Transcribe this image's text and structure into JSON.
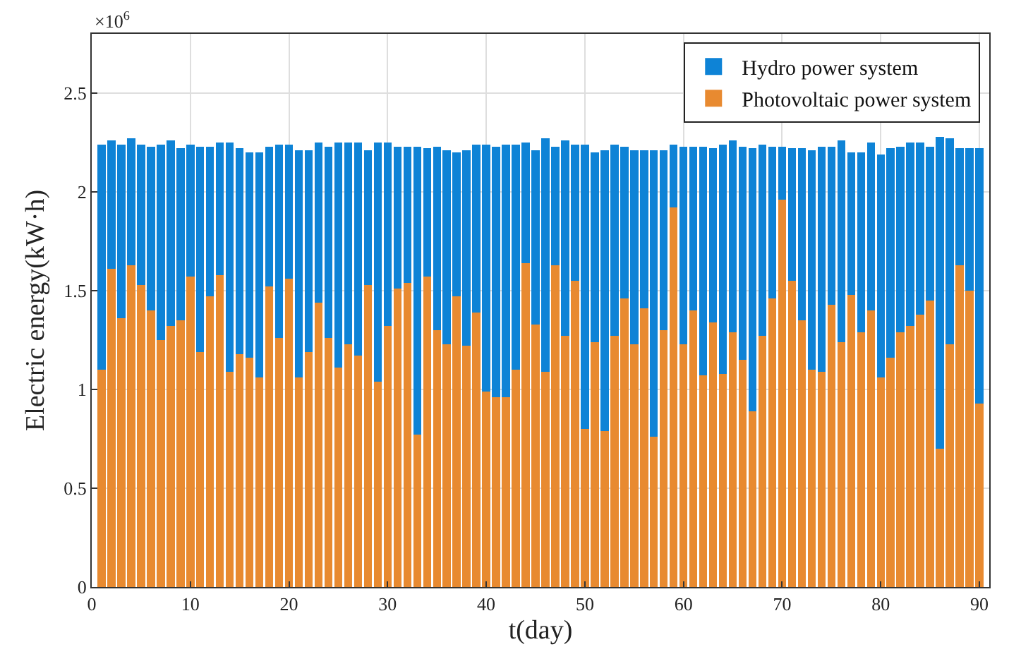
{
  "chart_data": {
    "type": "bar",
    "stacked": true,
    "xlabel": "t(day)",
    "ylabel": "Electric energy(kW·h)",
    "annotations": [
      "×10$^{6}$"
    ],
    "x": [
      1,
      2,
      3,
      4,
      5,
      6,
      7,
      8,
      9,
      10,
      11,
      12,
      13,
      14,
      15,
      16,
      17,
      18,
      19,
      20,
      21,
      22,
      23,
      24,
      25,
      26,
      27,
      28,
      29,
      30,
      31,
      32,
      33,
      34,
      35,
      36,
      37,
      38,
      39,
      40,
      41,
      42,
      43,
      44,
      45,
      46,
      47,
      48,
      49,
      50,
      51,
      52,
      53,
      54,
      55,
      56,
      57,
      58,
      59,
      60,
      61,
      62,
      63,
      64,
      65,
      66,
      67,
      68,
      69,
      70,
      71,
      72,
      73,
      74,
      75,
      76,
      77,
      78,
      79,
      80,
      81,
      82,
      83,
      84,
      85,
      86,
      87,
      88,
      89,
      90
    ],
    "series": [
      {
        "name": "Photovoltaic power system",
        "color": "#e88a30",
        "values": [
          1.1,
          1.61,
          1.36,
          1.63,
          1.53,
          1.4,
          1.25,
          1.32,
          1.35,
          1.57,
          1.19,
          1.47,
          1.58,
          1.09,
          1.18,
          1.16,
          1.06,
          1.52,
          1.26,
          1.56,
          1.06,
          1.19,
          1.44,
          1.26,
          1.11,
          1.23,
          1.17,
          1.53,
          1.04,
          1.32,
          1.51,
          1.54,
          0.77,
          1.57,
          1.3,
          1.23,
          1.47,
          1.22,
          1.39,
          0.99,
          0.96,
          0.96,
          1.1,
          1.64,
          1.33,
          1.09,
          1.63,
          1.27,
          1.55,
          0.8,
          1.24,
          0.79,
          1.27,
          1.46,
          1.23,
          1.41,
          0.76,
          1.3,
          1.92,
          1.23,
          1.4,
          1.07,
          1.34,
          1.08,
          1.29,
          1.15,
          0.89,
          1.27,
          1.46,
          1.96,
          1.55,
          1.35,
          1.1,
          1.09,
          1.43,
          1.24,
          1.48,
          1.29,
          1.4,
          1.06,
          1.16,
          1.29,
          1.32,
          1.38,
          1.45,
          0.7,
          1.23,
          1.63,
          1.5,
          0.93
        ]
      },
      {
        "name": "Hydro power system",
        "color": "#0e83d6",
        "values": [
          1.14,
          0.65,
          0.88,
          0.64,
          0.71,
          0.83,
          0.99,
          0.94,
          0.87,
          0.67,
          1.04,
          0.76,
          0.67,
          1.16,
          1.04,
          1.04,
          1.14,
          0.71,
          0.98,
          0.68,
          1.15,
          1.02,
          0.81,
          0.97,
          1.14,
          1.02,
          1.08,
          0.68,
          1.21,
          0.93,
          0.72,
          0.69,
          1.46,
          0.65,
          0.93,
          0.98,
          0.73,
          0.99,
          0.85,
          1.25,
          1.27,
          1.28,
          1.14,
          0.61,
          0.88,
          1.18,
          0.6,
          0.99,
          0.69,
          1.44,
          0.96,
          1.42,
          0.97,
          0.77,
          0.98,
          0.8,
          1.45,
          0.91,
          0.32,
          1.0,
          0.83,
          1.16,
          0.88,
          1.16,
          0.97,
          1.08,
          1.33,
          0.97,
          0.77,
          0.27,
          0.67,
          0.87,
          1.11,
          1.14,
          0.8,
          1.02,
          0.72,
          0.91,
          0.85,
          1.13,
          1.06,
          0.94,
          0.93,
          0.87,
          0.78,
          1.58,
          1.04,
          0.59,
          0.72,
          1.29
        ]
      }
    ],
    "xlim": [
      0,
      91
    ],
    "xticks": [
      0,
      10,
      20,
      30,
      40,
      50,
      60,
      70,
      80,
      90
    ],
    "ylim": [
      0,
      2.8
    ],
    "yticks": [
      0,
      0.5,
      1,
      1.5,
      2,
      2.5
    ],
    "grid": true,
    "legend": "top right"
  }
}
